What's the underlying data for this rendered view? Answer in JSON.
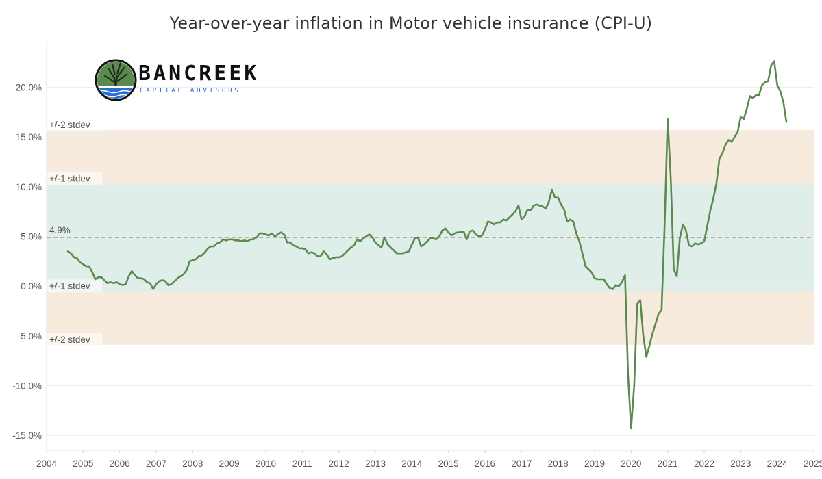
{
  "chart_data": {
    "type": "line",
    "title": "Year-over-year inflation in Motor vehicle insurance (CPI-U)",
    "xlabel": "",
    "ylabel": "",
    "x_tick_labels": [
      "2004",
      "2005",
      "2006",
      "2007",
      "2008",
      "2009",
      "2010",
      "2011",
      "2012",
      "2013",
      "2014",
      "2015",
      "2016",
      "2017",
      "2018",
      "2019",
      "2020",
      "2021",
      "2022",
      "2023",
      "2024",
      "2025"
    ],
    "y_ticks": [
      20,
      15,
      10,
      5,
      0,
      -5,
      -10,
      -15
    ],
    "y_tick_labels": [
      "20.0%",
      "15.0%",
      "10.0%",
      "5.0%",
      "0.0%",
      "-5.0%",
      "-10.0%",
      "-15.0%"
    ],
    "xlim": [
      2004,
      2025
    ],
    "ylim": [
      -16.5,
      24.5
    ],
    "grid": "horizontal",
    "mean": 4.9,
    "mean_label": "4.9%",
    "bands": [
      {
        "label_upper": "+/-1 stdev",
        "label_lower": "+/-1 stdev",
        "range": [
          -0.5,
          10.3
        ],
        "color": "#dfeee8"
      },
      {
        "label_upper": "+/-2 stdev",
        "label_lower": "+/-2 stdev",
        "range": [
          -5.9,
          15.7
        ],
        "color": "#f6ebdc"
      }
    ],
    "series": [
      {
        "color": "#5a8a4e",
        "points": [
          [
            "2004-08",
            3.5
          ],
          [
            "2004-09",
            3.3
          ],
          [
            "2004-10",
            2.9
          ],
          [
            "2004-11",
            2.8
          ],
          [
            "2004-12",
            2.4
          ],
          [
            "2005-01",
            2.2
          ],
          [
            "2005-02",
            2.0
          ],
          [
            "2005-03",
            2.0
          ],
          [
            "2005-04",
            1.4
          ],
          [
            "2005-05",
            0.7
          ],
          [
            "2005-06",
            0.9
          ],
          [
            "2005-07",
            0.9
          ],
          [
            "2005-08",
            0.6
          ],
          [
            "2005-09",
            0.3
          ],
          [
            "2005-10",
            0.4
          ],
          [
            "2005-11",
            0.3
          ],
          [
            "2005-12",
            0.4
          ],
          [
            "2006-01",
            0.2
          ],
          [
            "2006-02",
            0.1
          ],
          [
            "2006-03",
            0.2
          ],
          [
            "2006-04",
            1.0
          ],
          [
            "2006-05",
            1.5
          ],
          [
            "2006-06",
            1.1
          ],
          [
            "2006-07",
            0.8
          ],
          [
            "2006-08",
            0.8
          ],
          [
            "2006-09",
            0.7
          ],
          [
            "2006-10",
            0.4
          ],
          [
            "2006-11",
            0.3
          ],
          [
            "2006-12",
            -0.3
          ],
          [
            "2007-01",
            0.2
          ],
          [
            "2007-02",
            0.5
          ],
          [
            "2007-03",
            0.6
          ],
          [
            "2007-04",
            0.5
          ],
          [
            "2007-05",
            0.1
          ],
          [
            "2007-06",
            0.2
          ],
          [
            "2007-07",
            0.5
          ],
          [
            "2007-08",
            0.8
          ],
          [
            "2007-09",
            1.0
          ],
          [
            "2007-10",
            1.2
          ],
          [
            "2007-11",
            1.6
          ],
          [
            "2007-12",
            2.5
          ],
          [
            "2008-01",
            2.6
          ],
          [
            "2008-02",
            2.7
          ],
          [
            "2008-03",
            3.0
          ],
          [
            "2008-04",
            3.1
          ],
          [
            "2008-05",
            3.4
          ],
          [
            "2008-06",
            3.8
          ],
          [
            "2008-07",
            4.0
          ],
          [
            "2008-08",
            4.0
          ],
          [
            "2008-09",
            4.3
          ],
          [
            "2008-10",
            4.4
          ],
          [
            "2008-11",
            4.7
          ],
          [
            "2008-12",
            4.6
          ],
          [
            "2009-01",
            4.7
          ],
          [
            "2009-02",
            4.7
          ],
          [
            "2009-03",
            4.6
          ],
          [
            "2009-04",
            4.6
          ],
          [
            "2009-05",
            4.5
          ],
          [
            "2009-06",
            4.6
          ],
          [
            "2009-07",
            4.5
          ],
          [
            "2009-08",
            4.7
          ],
          [
            "2009-09",
            4.7
          ],
          [
            "2009-10",
            4.9
          ],
          [
            "2009-11",
            5.3
          ],
          [
            "2009-12",
            5.3
          ],
          [
            "2010-01",
            5.2
          ],
          [
            "2010-02",
            5.1
          ],
          [
            "2010-03",
            5.3
          ],
          [
            "2010-04",
            5.0
          ],
          [
            "2010-05",
            5.2
          ],
          [
            "2010-06",
            5.4
          ],
          [
            "2010-07",
            5.2
          ],
          [
            "2010-08",
            4.4
          ],
          [
            "2010-09",
            4.4
          ],
          [
            "2010-10",
            4.1
          ],
          [
            "2010-11",
            4.0
          ],
          [
            "2010-12",
            3.8
          ],
          [
            "2011-01",
            3.8
          ],
          [
            "2011-02",
            3.7
          ],
          [
            "2011-03",
            3.3
          ],
          [
            "2011-04",
            3.4
          ],
          [
            "2011-05",
            3.3
          ],
          [
            "2011-06",
            3.0
          ],
          [
            "2011-07",
            3.0
          ],
          [
            "2011-08",
            3.5
          ],
          [
            "2011-09",
            3.2
          ],
          [
            "2011-10",
            2.7
          ],
          [
            "2011-11",
            2.8
          ],
          [
            "2011-12",
            2.9
          ],
          [
            "2012-01",
            2.9
          ],
          [
            "2012-02",
            3.0
          ],
          [
            "2012-03",
            3.3
          ],
          [
            "2012-04",
            3.6
          ],
          [
            "2012-05",
            3.9
          ],
          [
            "2012-06",
            4.1
          ],
          [
            "2012-07",
            4.7
          ],
          [
            "2012-08",
            4.5
          ],
          [
            "2012-09",
            4.8
          ],
          [
            "2012-10",
            5.0
          ],
          [
            "2012-11",
            5.2
          ],
          [
            "2012-12",
            4.9
          ],
          [
            "2013-01",
            4.4
          ],
          [
            "2013-02",
            4.1
          ],
          [
            "2013-03",
            3.9
          ],
          [
            "2013-04",
            4.9
          ],
          [
            "2013-05",
            4.2
          ],
          [
            "2013-06",
            3.9
          ],
          [
            "2013-07",
            3.6
          ],
          [
            "2013-08",
            3.3
          ],
          [
            "2013-09",
            3.3
          ],
          [
            "2013-10",
            3.3
          ],
          [
            "2013-11",
            3.4
          ],
          [
            "2013-12",
            3.5
          ],
          [
            "2014-01",
            4.2
          ],
          [
            "2014-02",
            4.8
          ],
          [
            "2014-03",
            4.9
          ],
          [
            "2014-04",
            4.0
          ],
          [
            "2014-05",
            4.2
          ],
          [
            "2014-06",
            4.5
          ],
          [
            "2014-07",
            4.8
          ],
          [
            "2014-08",
            4.8
          ],
          [
            "2014-09",
            4.7
          ],
          [
            "2014-10",
            5.0
          ],
          [
            "2014-11",
            5.6
          ],
          [
            "2014-12",
            5.8
          ],
          [
            "2015-01",
            5.4
          ],
          [
            "2015-02",
            5.1
          ],
          [
            "2015-03",
            5.3
          ],
          [
            "2015-04",
            5.4
          ],
          [
            "2015-05",
            5.4
          ],
          [
            "2015-06",
            5.5
          ],
          [
            "2015-07",
            4.7
          ],
          [
            "2015-08",
            5.5
          ],
          [
            "2015-09",
            5.6
          ],
          [
            "2015-10",
            5.2
          ],
          [
            "2015-11",
            5.0
          ],
          [
            "2015-12",
            5.1
          ],
          [
            "2016-01",
            5.7
          ],
          [
            "2016-02",
            6.5
          ],
          [
            "2016-03",
            6.4
          ],
          [
            "2016-04",
            6.2
          ],
          [
            "2016-05",
            6.4
          ],
          [
            "2016-06",
            6.4
          ],
          [
            "2016-07",
            6.7
          ],
          [
            "2016-08",
            6.6
          ],
          [
            "2016-09",
            6.9
          ],
          [
            "2016-10",
            7.2
          ],
          [
            "2016-11",
            7.5
          ],
          [
            "2016-12",
            8.1
          ],
          [
            "2017-01",
            6.7
          ],
          [
            "2017-02",
            7.0
          ],
          [
            "2017-03",
            7.7
          ],
          [
            "2017-04",
            7.6
          ],
          [
            "2017-05",
            8.1
          ],
          [
            "2017-06",
            8.2
          ],
          [
            "2017-07",
            8.1
          ],
          [
            "2017-08",
            8.0
          ],
          [
            "2017-09",
            7.8
          ],
          [
            "2017-10",
            8.5
          ],
          [
            "2017-11",
            9.7
          ],
          [
            "2017-12",
            8.9
          ],
          [
            "2018-01",
            8.9
          ],
          [
            "2018-02",
            8.2
          ],
          [
            "2018-03",
            7.7
          ],
          [
            "2018-04",
            6.5
          ],
          [
            "2018-05",
            6.7
          ],
          [
            "2018-06",
            6.5
          ],
          [
            "2018-07",
            5.3
          ],
          [
            "2018-08",
            4.5
          ],
          [
            "2018-09",
            3.3
          ],
          [
            "2018-10",
            2.0
          ],
          [
            "2018-11",
            1.7
          ],
          [
            "2018-12",
            1.4
          ],
          [
            "2019-01",
            0.8
          ],
          [
            "2019-02",
            0.7
          ],
          [
            "2019-03",
            0.7
          ],
          [
            "2019-04",
            0.7
          ],
          [
            "2019-05",
            0.2
          ],
          [
            "2019-06",
            -0.2
          ],
          [
            "2019-07",
            -0.3
          ],
          [
            "2019-08",
            0.1
          ],
          [
            "2019-09",
            0.0
          ],
          [
            "2019-10",
            0.4
          ],
          [
            "2019-11",
            1.1
          ],
          [
            "2019-12",
            -9.0
          ],
          [
            "2020-01",
            -14.3
          ],
          [
            "2020-02",
            -10.0
          ],
          [
            "2020-03",
            -1.8
          ],
          [
            "2020-04",
            -1.4
          ],
          [
            "2020-05",
            -5.0
          ],
          [
            "2020-06",
            -7.1
          ],
          [
            "2020-07",
            -6.0
          ],
          [
            "2020-08",
            -4.8
          ],
          [
            "2020-09",
            -3.8
          ],
          [
            "2020-10",
            -2.8
          ],
          [
            "2020-11",
            -2.4
          ],
          [
            "2020-12",
            6.0
          ],
          [
            "2021-01",
            16.8
          ],
          [
            "2021-02",
            11.0
          ],
          [
            "2021-03",
            1.7
          ],
          [
            "2021-04",
            1.0
          ],
          [
            "2021-05",
            4.8
          ],
          [
            "2021-06",
            6.2
          ],
          [
            "2021-07",
            5.6
          ],
          [
            "2021-08",
            4.1
          ],
          [
            "2021-09",
            4.0
          ],
          [
            "2021-10",
            4.3
          ],
          [
            "2021-11",
            4.2
          ],
          [
            "2021-12",
            4.3
          ],
          [
            "2022-01",
            4.5
          ],
          [
            "2022-02",
            6.0
          ],
          [
            "2022-03",
            7.6
          ],
          [
            "2022-04",
            8.8
          ],
          [
            "2022-05",
            10.3
          ],
          [
            "2022-06",
            12.8
          ],
          [
            "2022-07",
            13.4
          ],
          [
            "2022-08",
            14.2
          ],
          [
            "2022-09",
            14.7
          ],
          [
            "2022-10",
            14.5
          ],
          [
            "2022-11",
            15.0
          ],
          [
            "2022-12",
            15.5
          ],
          [
            "2023-01",
            17.0
          ],
          [
            "2023-02",
            16.8
          ],
          [
            "2023-03",
            17.8
          ],
          [
            "2023-04",
            19.1
          ],
          [
            "2023-05",
            18.9
          ],
          [
            "2023-06",
            19.2
          ],
          [
            "2023-07",
            19.2
          ],
          [
            "2023-08",
            20.2
          ],
          [
            "2023-09",
            20.5
          ],
          [
            "2023-10",
            20.6
          ],
          [
            "2023-11",
            22.2
          ],
          [
            "2023-12",
            22.6
          ],
          [
            "2024-01",
            20.2
          ],
          [
            "2024-02",
            19.6
          ],
          [
            "2024-03",
            18.5
          ],
          [
            "2024-04",
            16.5
          ]
        ]
      }
    ]
  },
  "logo": {
    "name": "BANCREEK",
    "tagline": "CAPITAL ADVISORS",
    "colors": {
      "ring": "#111111",
      "tree": "#5a8a4e",
      "water": "#2a6fd1"
    }
  }
}
